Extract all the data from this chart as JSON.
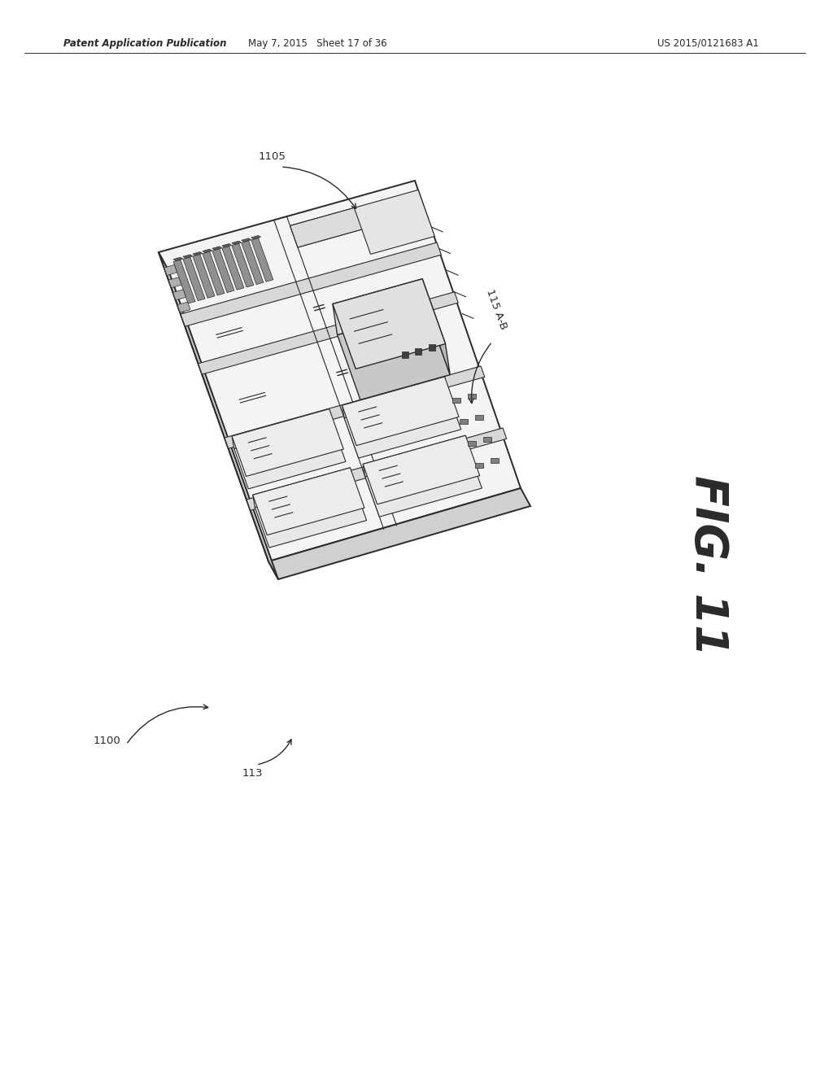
{
  "header_left": "Patent Application Publication",
  "header_center": "May 7, 2015   Sheet 17 of 36",
  "header_right": "US 2015/0121683 A1",
  "figure_label": "FIG. 11",
  "label_1105": "1105",
  "label_115AB": "115 A-B",
  "label_1100": "1100",
  "label_113": "113",
  "bg_color": "#ffffff",
  "line_color": "#2a2a2a",
  "lw_main": 1.4,
  "lw_thin": 0.8,
  "lw_med": 1.0
}
